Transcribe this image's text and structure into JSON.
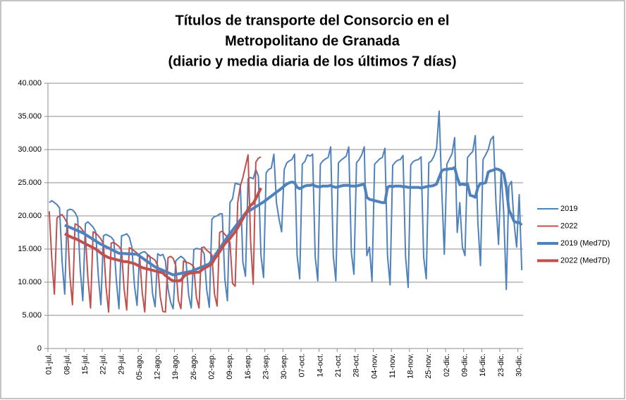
{
  "chart_data": {
    "type": "line",
    "title": [
      "Títulos de transporte del Consorcio en el",
      "Metropolitano de Granada",
      "(diario y media diaria de los últimos 7 días)"
    ],
    "categories": [
      "01-jul.",
      null,
      null,
      null,
      null,
      null,
      null,
      "08-jul.",
      null,
      null,
      null,
      null,
      null,
      null,
      "15-jul.",
      null,
      null,
      null,
      null,
      null,
      null,
      "22-jul.",
      null,
      null,
      null,
      null,
      null,
      null,
      "29-jul.",
      null,
      null,
      null,
      null,
      null,
      null,
      "05-ago.",
      null,
      null,
      null,
      null,
      null,
      null,
      "12-ago.",
      null,
      null,
      null,
      null,
      null,
      null,
      "19-ago.",
      null,
      null,
      null,
      null,
      null,
      null,
      "26-ago.",
      null,
      null,
      null,
      null,
      null,
      null,
      "02-sep.",
      null,
      null,
      null,
      null,
      null,
      null,
      "09-sep.",
      null,
      null,
      null,
      null,
      null,
      null,
      "16-sep.",
      null,
      null,
      null,
      null,
      null,
      null,
      "23-sep.",
      null,
      null,
      null,
      null,
      null,
      null,
      "30-sep.",
      null,
      null,
      null,
      null,
      null,
      null,
      "07-oct.",
      null,
      null,
      null,
      null,
      null,
      null,
      "14-oct.",
      null,
      null,
      null,
      null,
      null,
      null,
      "21-oct.",
      null,
      null,
      null,
      null,
      null,
      null,
      "28-oct.",
      null,
      null,
      null,
      null,
      null,
      null,
      "04-nov.",
      null,
      null,
      null,
      null,
      null,
      null,
      "11-nov.",
      null,
      null,
      null,
      null,
      null,
      null,
      "18-nov.",
      null,
      null,
      null,
      null,
      null,
      null,
      "25-nov.",
      null,
      null,
      null,
      null,
      null,
      null,
      "02-dic.",
      null,
      null,
      null,
      null,
      null,
      null,
      "09-dic.",
      null,
      null,
      null,
      null,
      null,
      null,
      "16-dic.",
      null,
      null,
      null,
      null,
      null,
      null,
      "23-dic.",
      null,
      null,
      null,
      null,
      null,
      null,
      "30-dic.",
      null
    ],
    "series": [
      {
        "name": "2019",
        "color": "#4f81bd",
        "width": 2,
        "values": [
          22000,
          22300,
          22000,
          21700,
          21200,
          13000,
          8200,
          20800,
          21000,
          20900,
          20500,
          19700,
          12000,
          7200,
          18800,
          19100,
          18700,
          18300,
          17600,
          11000,
          6600,
          17000,
          17200,
          17000,
          16800,
          16300,
          10200,
          6000,
          17000,
          17100,
          17300,
          16800,
          15300,
          9500,
          6500,
          14300,
          14500,
          14600,
          14200,
          13900,
          8300,
          6300,
          14300,
          14000,
          14200,
          13200,
          9000,
          7000,
          6000,
          13200,
          13600,
          13900,
          13600,
          13100,
          8000,
          6100,
          14900,
          15100,
          15000,
          15000,
          14300,
          8800,
          6200,
          19500,
          19900,
          20000,
          20300,
          20300,
          10500,
          7200,
          22000,
          22600,
          24900,
          24800,
          24700,
          13000,
          10900,
          25600,
          25800,
          25600,
          27000,
          26000,
          14000,
          10700,
          26500,
          27000,
          27200,
          29300,
          22000,
          19500,
          17600,
          27000,
          28000,
          28300,
          28500,
          29300,
          14000,
          10500,
          27800,
          28200,
          29200,
          29000,
          29300,
          13800,
          10200,
          27800,
          28300,
          28600,
          28800,
          30400,
          14000,
          10200,
          28000,
          28400,
          28700,
          29000,
          30400,
          14500,
          11200,
          28000,
          28500,
          29200,
          30400,
          14000,
          15300,
          10100,
          27800,
          28200,
          28600,
          28800,
          30200,
          14000,
          9600,
          27600,
          28100,
          28400,
          28500,
          29100,
          13800,
          9200,
          27700,
          28200,
          28400,
          28500,
          28900,
          13800,
          10500,
          28000,
          28300,
          29000,
          30200,
          35800,
          24000,
          14200,
          27800,
          28600,
          29400,
          31800,
          17500,
          22000,
          15300,
          14000,
          28800,
          29300,
          29700,
          32100,
          19000,
          12500,
          28500,
          29200,
          30000,
          31500,
          32000,
          22000,
          15700,
          26800,
          20500,
          8900,
          24500,
          25200,
          19000,
          15300,
          23200,
          11800
        ]
      },
      {
        "name": "2022",
        "color": "#c0504d",
        "width": 2,
        "values": [
          20700,
          13500,
          8200,
          19700,
          20000,
          20200,
          19600,
          18900,
          11000,
          6600,
          18800,
          18600,
          18300,
          17800,
          17200,
          10500,
          6100,
          17600,
          17400,
          17000,
          16500,
          15800,
          9300,
          5500,
          15900,
          16000,
          15700,
          15400,
          14800,
          9000,
          5800,
          15200,
          15000,
          14700,
          14400,
          13900,
          8500,
          5500,
          14100,
          13800,
          13600,
          13300,
          12500,
          7800,
          5600,
          5500,
          13700,
          13900,
          13600,
          12500,
          7300,
          6000,
          13200,
          13000,
          12900,
          12700,
          12300,
          7700,
          6100,
          15200,
          15300,
          14800,
          14500,
          14100,
          8200,
          6400,
          17500,
          17700,
          17200,
          16800,
          16000,
          9800,
          9400,
          22000,
          24500,
          25800,
          27500,
          29200,
          16000,
          9700,
          28100,
          28700,
          28900,
          null,
          null,
          null,
          null,
          null,
          null,
          null,
          null,
          null,
          null,
          null,
          null,
          null,
          null,
          null,
          null,
          null,
          null,
          null,
          null,
          null,
          null,
          null,
          null,
          null,
          null,
          null,
          null,
          null,
          null,
          null,
          null,
          null,
          null,
          null,
          null,
          null,
          null,
          null,
          null,
          null,
          null,
          null,
          null,
          null,
          null,
          null,
          null,
          null,
          null,
          null,
          null,
          null,
          null,
          null,
          null,
          null,
          null,
          null,
          null,
          null,
          null,
          null,
          null,
          null,
          null,
          null,
          null,
          null,
          null,
          null,
          null,
          null,
          null,
          null,
          null,
          null,
          null,
          null,
          null,
          null,
          null,
          null,
          null,
          null,
          null,
          null,
          null,
          null,
          null,
          null,
          null,
          null,
          null,
          null,
          null,
          null,
          null,
          null,
          null,
          null
        ]
      },
      {
        "name": "2019 (Med7D)",
        "color": "#4f81bd",
        "width": 4,
        "values": [
          null,
          null,
          null,
          null,
          null,
          null,
          18600,
          18430,
          18270,
          18100,
          17940,
          17770,
          17610,
          17440,
          17200,
          16950,
          16710,
          16460,
          16220,
          15970,
          15730,
          15530,
          15340,
          15140,
          14950,
          14750,
          14560,
          14360,
          14340,
          14320,
          14300,
          14280,
          14250,
          14230,
          14210,
          13940,
          13670,
          13390,
          13120,
          12850,
          12570,
          12300,
          12130,
          11960,
          11790,
          11610,
          11440,
          11270,
          11100,
          11180,
          11250,
          11330,
          11410,
          11490,
          11560,
          11640,
          11800,
          11960,
          12120,
          12280,
          12440,
          12600,
          12760,
          13340,
          13920,
          14500,
          15080,
          15650,
          16230,
          16810,
          17320,
          17840,
          18350,
          18870,
          19380,
          19900,
          20410,
          20650,
          20890,
          21140,
          21380,
          21620,
          21860,
          22100,
          22390,
          22690,
          22980,
          23280,
          23570,
          23870,
          24160,
          24500,
          24800,
          25000,
          25100,
          25000,
          24300,
          24100,
          24300,
          24500,
          24600,
          24600,
          24700,
          24500,
          24400,
          24400,
          24500,
          24500,
          24500,
          24600,
          24400,
          24300,
          24400,
          24500,
          24600,
          24600,
          24600,
          24500,
          24500,
          24500,
          24600,
          24700,
          24800,
          22800,
          22500,
          22400,
          22300,
          22200,
          22100,
          22000,
          22000,
          24300,
          24500,
          24400,
          24500,
          24500,
          24500,
          24400,
          24400,
          24300,
          24300,
          24300,
          24300,
          24300,
          24200,
          24300,
          24400,
          24500,
          24500,
          24600,
          24800,
          25800,
          26800,
          27000,
          27000,
          27100,
          27100,
          27300,
          25800,
          24700,
          24800,
          24700,
          24800,
          23100,
          23000,
          22800,
          24300,
          24900,
          24900,
          25000,
          26600,
          26800,
          26900,
          27100,
          27000,
          26800,
          26400,
          24400,
          20900,
          20100,
          19200,
          19000,
          19000,
          18600
        ]
      },
      {
        "name": "2022 (Med7D)",
        "color": "#c0504d",
        "width": 4,
        "values": [
          null,
          null,
          null,
          null,
          null,
          null,
          17300,
          17100,
          16900,
          16700,
          16600,
          16400,
          16200,
          16000,
          15800,
          15600,
          15400,
          15200,
          15000,
          14700,
          14400,
          14100,
          13900,
          13700,
          13600,
          13500,
          13400,
          13300,
          13200,
          13100,
          13100,
          13000,
          12900,
          12800,
          12600,
          12400,
          12200,
          12100,
          12000,
          11900,
          11800,
          11700,
          11600,
          11500,
          11400,
          11000,
          10700,
          10400,
          10200,
          10200,
          10200,
          10300,
          10800,
          11200,
          11300,
          11400,
          11400,
          11500,
          11500,
          11800,
          12100,
          12300,
          12500,
          12800,
          13500,
          14000,
          14600,
          15200,
          15800,
          16200,
          16600,
          17100,
          17600,
          18200,
          18900,
          19600,
          20300,
          21000,
          21600,
          21900,
          22600,
          23400,
          24200,
          null,
          null,
          null,
          null,
          null,
          null,
          null,
          null,
          null,
          null,
          null,
          null,
          null,
          null,
          null,
          null,
          null,
          null,
          null,
          null,
          null,
          null,
          null,
          null,
          null,
          null,
          null,
          null,
          null,
          null,
          null,
          null,
          null,
          null,
          null,
          null,
          null,
          null,
          null,
          null,
          null,
          null,
          null,
          null,
          null,
          null,
          null,
          null,
          null,
          null,
          null,
          null,
          null,
          null,
          null,
          null,
          null,
          null,
          null,
          null,
          null,
          null,
          null,
          null,
          null,
          null,
          null,
          null,
          null,
          null,
          null,
          null,
          null,
          null,
          null,
          null,
          null,
          null,
          null,
          null,
          null,
          null,
          null,
          null,
          null,
          null,
          null,
          null,
          null,
          null,
          null,
          null,
          null,
          null,
          null,
          null,
          null,
          null,
          null,
          null,
          null
        ]
      }
    ],
    "ylim": [
      0,
      40000
    ],
    "yticks": [
      0,
      {
        "value": 5000,
        "label": "5.000"
      },
      {
        "value": 10000,
        "label": "10.000"
      },
      {
        "value": 15000,
        "label": "15.000"
      },
      {
        "value": 20000,
        "label": "20.000"
      },
      {
        "value": 25000,
        "label": "25.000"
      },
      {
        "value": 30000,
        "label": "30.000"
      },
      {
        "value": 35000,
        "label": "35.000"
      },
      {
        "value": 40000,
        "label": "40.000"
      }
    ],
    "grid": true,
    "legend": "right"
  }
}
